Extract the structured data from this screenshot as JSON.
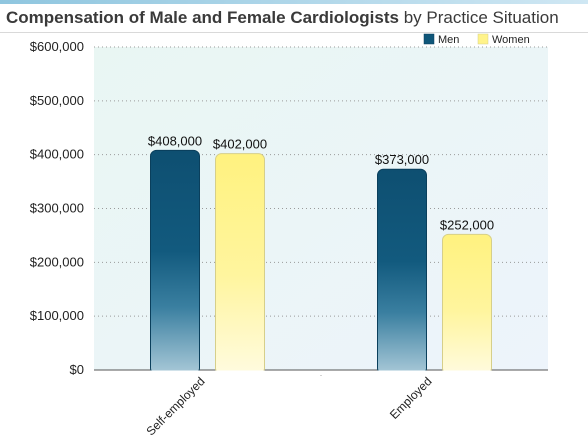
{
  "chart_data": {
    "type": "bar",
    "title": "Compensation of Male and Female Cardiologists",
    "subtitle": "by Practice Situation",
    "xlabel": "",
    "ylabel": "",
    "categories": [
      "Self-employed",
      "Employed"
    ],
    "series": [
      {
        "name": "Men",
        "values": [
          408000,
          373000
        ],
        "labels": [
          "$408,000",
          "$373,000"
        ],
        "color": "#0f5679"
      },
      {
        "name": "Women",
        "values": [
          402000,
          252000
        ],
        "labels": [
          "$402,000",
          "$252,000"
        ],
        "color": "#fff38a"
      }
    ],
    "ylim": [
      0,
      600000
    ],
    "yticks": [
      0,
      100000,
      200000,
      300000,
      400000,
      500000,
      600000
    ],
    "ytick_labels": [
      "$0",
      "$100,000",
      "$200,000",
      "$300,000",
      "$400,000",
      "$500,000",
      "$600,000"
    ],
    "grid": true,
    "legend_position": "top-right"
  }
}
